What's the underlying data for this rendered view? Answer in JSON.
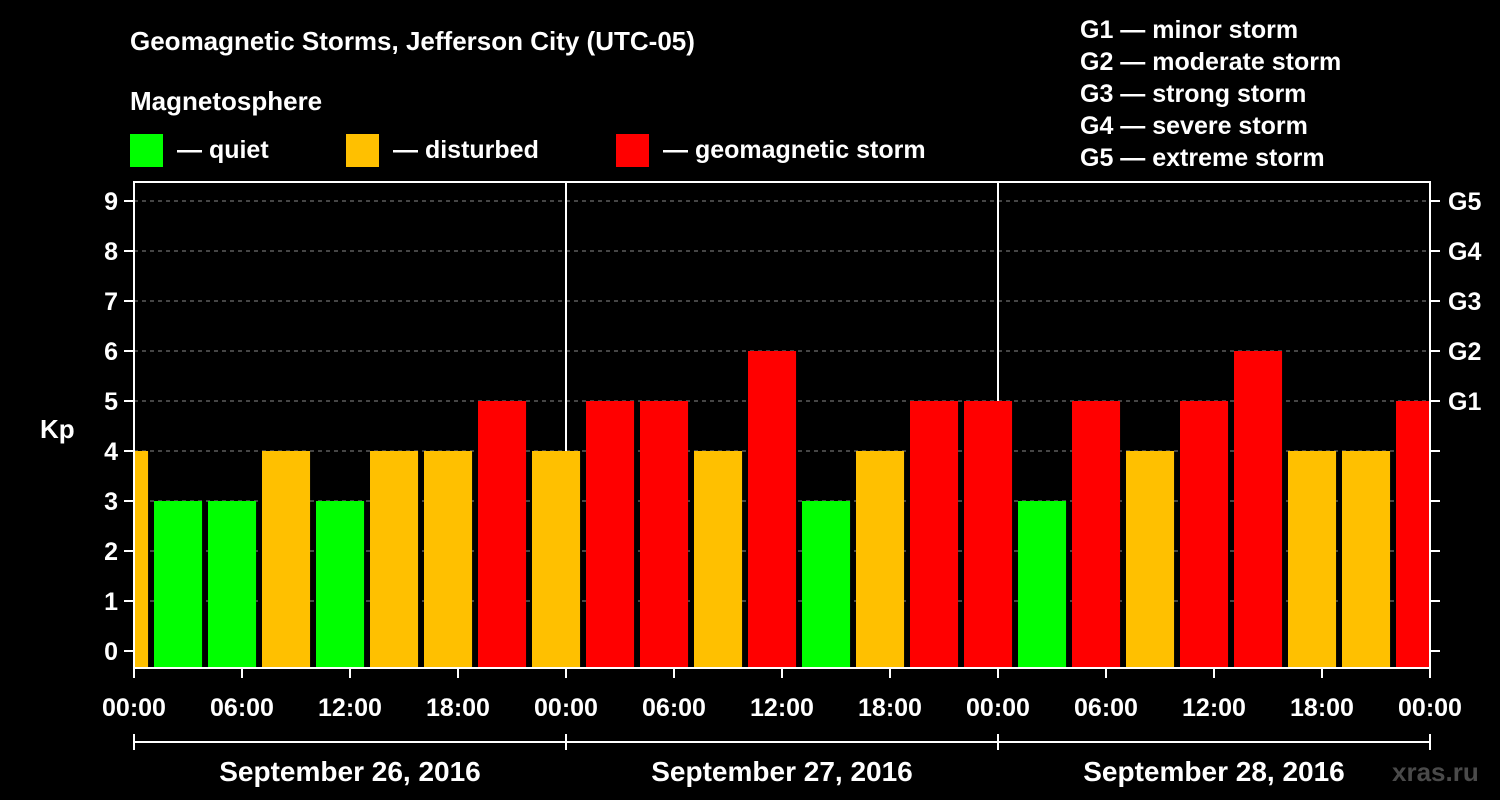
{
  "chart_data": {
    "type": "bar",
    "title": "Geomagnetic Storms, Jefferson City (UTC-05)",
    "subtitle": "Magnetosphere",
    "ylabel": "Kp",
    "ylim": [
      0,
      9
    ],
    "yticks": [
      0,
      1,
      2,
      3,
      4,
      5,
      6,
      7,
      8,
      9
    ],
    "storm_levels": [
      {
        "kp": 5,
        "label": "G1"
      },
      {
        "kp": 6,
        "label": "G2"
      },
      {
        "kp": 7,
        "label": "G3"
      },
      {
        "kp": 8,
        "label": "G4"
      },
      {
        "kp": 9,
        "label": "G5"
      }
    ],
    "storm_legend": [
      "G1 — minor storm",
      "G2 — moderate storm",
      "G3 — strong storm",
      "G4 — severe storm",
      "G5 — extreme storm"
    ],
    "legend": [
      {
        "label": "— quiet",
        "color": "#00ff00"
      },
      {
        "label": "— disturbed",
        "color": "#ffc000"
      },
      {
        "label": "— geomagnetic storm",
        "color": "#ff0000"
      }
    ],
    "colors": {
      "quiet": "#00ff00",
      "disturbed": "#ffc000",
      "storm": "#ff0000"
    },
    "xtick_labels": [
      "00:00",
      "06:00",
      "12:00",
      "18:00",
      "00:00",
      "06:00",
      "12:00",
      "18:00",
      "00:00",
      "06:00",
      "12:00",
      "18:00",
      "00:00"
    ],
    "day_labels": [
      "September 26, 2016",
      "September 27, 2016",
      "September 28, 2016"
    ],
    "interval_hours": 3,
    "start_offset_hours": -2,
    "total_hours": 72,
    "values": [
      4,
      3,
      3,
      4,
      3,
      4,
      4,
      5,
      4,
      5,
      5,
      4,
      6,
      3,
      4,
      5,
      5,
      3,
      5,
      4,
      5,
      6,
      4,
      4,
      5
    ],
    "grid": true
  },
  "watermark": "xras.ru"
}
